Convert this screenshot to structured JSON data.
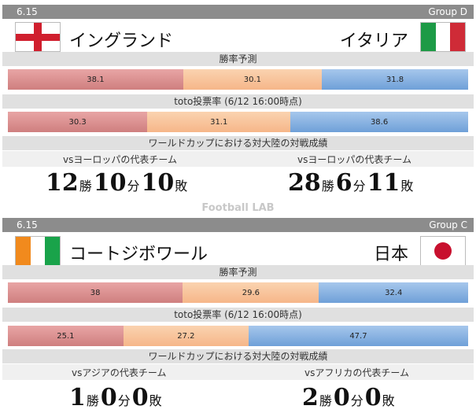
{
  "matches": [
    {
      "date": "6.15",
      "group": "Group D",
      "home": {
        "name": "イングランド",
        "flag": "england-flag"
      },
      "away": {
        "name": "イタリア",
        "flag": "italy-flag"
      },
      "pred_label": "勝率予測",
      "pred": [
        "38.1",
        "30.1",
        "31.8"
      ],
      "toto_label": "toto投票率 (6/12 16:00時点)",
      "toto": [
        "30.3",
        "31.1",
        "38.6"
      ],
      "wc_label": "ワールドカップにおける対大陸の対戦成績",
      "home_vs": "vsヨーロッパの代表チーム",
      "away_vs": "vsヨーロッパの代表チーム",
      "home_rec": {
        "w": "12",
        "d": "10",
        "l": "10"
      },
      "away_rec": {
        "w": "28",
        "d": "6",
        "l": "11"
      }
    },
    {
      "date": "6.15",
      "group": "Group C",
      "home": {
        "name": "コートジボワール",
        "flag": "ivory-coast-flag"
      },
      "away": {
        "name": "日本",
        "flag": "japan-flag"
      },
      "pred_label": "勝率予測",
      "pred": [
        "38",
        "29.6",
        "32.4"
      ],
      "toto_label": "toto投票率 (6/12 16:00時点)",
      "toto": [
        "25.1",
        "27.2",
        "47.7"
      ],
      "wc_label": "ワールドカップにおける対大陸の対戦成績",
      "home_vs": "vsアジアの代表チーム",
      "away_vs": "vsアフリカの代表チーム",
      "home_rec": {
        "w": "1",
        "d": "0",
        "l": "0"
      },
      "away_rec": {
        "w": "2",
        "d": "0",
        "l": "0"
      }
    }
  ],
  "units": {
    "w": "勝",
    "d": "分",
    "l": "敗"
  },
  "watermark": "Football LAB",
  "colors": {
    "win": "#cf7f7f",
    "draw": "#f6b689",
    "loss": "#6fa0d8",
    "header": "#8c8c8c"
  }
}
